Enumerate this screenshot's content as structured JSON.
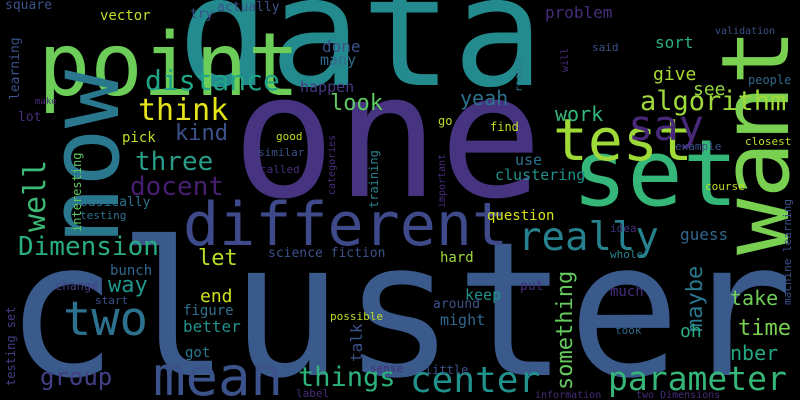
{
  "words": [
    {
      "text": "cluster",
      "color": "#3b5a8c"
    },
    {
      "text": "one",
      "color": "#463480"
    },
    {
      "text": "data",
      "color": "#238a8d"
    },
    {
      "text": "point",
      "color": "#6cce59"
    },
    {
      "text": "now",
      "color": "#2a788e"
    },
    {
      "text": "want",
      "color": "#7ad151"
    },
    {
      "text": "set",
      "color": "#35b779"
    },
    {
      "text": "test",
      "color": "#a0da39"
    },
    {
      "text": "different",
      "color": "#3e4a89"
    },
    {
      "text": "two",
      "color": "#2c728e"
    },
    {
      "text": "mean",
      "color": "#3b528b"
    },
    {
      "text": "say",
      "color": "#482878"
    },
    {
      "text": "really",
      "color": "#26828e"
    },
    {
      "text": "algorithm",
      "color": "#9fda3a"
    },
    {
      "text": "think",
      "color": "#e5e419"
    },
    {
      "text": "distance",
      "color": "#20a386"
    },
    {
      "text": "well",
      "color": "#3aba76"
    },
    {
      "text": "three",
      "color": "#2a9d8a"
    },
    {
      "text": "docent",
      "color": "#481f70"
    },
    {
      "text": "kind",
      "color": "#3b528b"
    },
    {
      "text": "Dimension",
      "color": "#27ad81"
    },
    {
      "text": "way",
      "color": "#1f968b"
    },
    {
      "text": "group",
      "color": "#424086"
    },
    {
      "text": "let",
      "color": "#b8de29"
    },
    {
      "text": "end",
      "color": "#d0e11c"
    },
    {
      "text": "better",
      "color": "#21918c"
    },
    {
      "text": "got",
      "color": "#2a788e"
    },
    {
      "text": "figure",
      "color": "#2c728e"
    },
    {
      "text": "look",
      "color": "#5ec962"
    },
    {
      "text": "done",
      "color": "#3b528b"
    },
    {
      "text": "many",
      "color": "#31688e"
    },
    {
      "text": "happen",
      "color": "#443983"
    },
    {
      "text": "yeah",
      "color": "#2c728e"
    },
    {
      "text": "problem",
      "color": "#472d7b"
    },
    {
      "text": "sort",
      "color": "#29af7f"
    },
    {
      "text": "give",
      "color": "#aadc32"
    },
    {
      "text": "see",
      "color": "#93d741"
    },
    {
      "text": "work",
      "color": "#35b779"
    },
    {
      "text": "use",
      "color": "#2c728e"
    },
    {
      "text": "clustering",
      "color": "#21918c"
    },
    {
      "text": "question",
      "color": "#d8e219"
    },
    {
      "text": "guess",
      "color": "#31688e"
    },
    {
      "text": "maybe",
      "color": "#2a788e"
    },
    {
      "text": "take",
      "color": "#6ece58"
    },
    {
      "text": "time",
      "color": "#7ad151"
    },
    {
      "text": "oh",
      "color": "#29af7f"
    },
    {
      "text": "nber",
      "color": "#22a884"
    },
    {
      "text": "parameter",
      "color": "#35b779"
    },
    {
      "text": "center",
      "color": "#21918c"
    },
    {
      "text": "things",
      "color": "#2db27d"
    },
    {
      "text": "something",
      "color": "#65cb5e"
    },
    {
      "text": "talk",
      "color": "#3b528b"
    },
    {
      "text": "might",
      "color": "#31688e"
    },
    {
      "text": "keep",
      "color": "#21918c"
    },
    {
      "text": "hard",
      "color": "#9fda3a"
    },
    {
      "text": "much",
      "color": "#472d7b"
    },
    {
      "text": "put",
      "color": "#472d7b"
    },
    {
      "text": "around",
      "color": "#3b528b"
    },
    {
      "text": "science fiction",
      "color": "#3b528b"
    },
    {
      "text": "bunch",
      "color": "#31688e"
    },
    {
      "text": "change",
      "color": "#433e85"
    },
    {
      "text": "start",
      "color": "#3b528b"
    },
    {
      "text": "possible",
      "color": "#bddf26"
    },
    {
      "text": "sense",
      "color": "#472d7b"
    },
    {
      "text": "little",
      "color": "#3b528b"
    },
    {
      "text": "label",
      "color": "#472d7b"
    },
    {
      "text": "information",
      "color": "#472d7b"
    },
    {
      "text": "two Dimensions",
      "color": "#472d7b"
    },
    {
      "text": "took",
      "color": "#31688e"
    },
    {
      "text": "whole",
      "color": "#26828e"
    },
    {
      "text": "idea",
      "color": "#46327e"
    },
    {
      "text": "course",
      "color": "#bddf26"
    },
    {
      "text": "closest",
      "color": "#bddf26"
    },
    {
      "text": "example",
      "color": "#3b528b"
    },
    {
      "text": "people",
      "color": "#31688e"
    },
    {
      "text": "validation",
      "color": "#3b528b"
    },
    {
      "text": "will",
      "color": "#472d7b"
    },
    {
      "text": "said",
      "color": "#3b528b"
    },
    {
      "text": "result",
      "color": "#2a788e"
    },
    {
      "text": "machine learning",
      "color": "#3b528b"
    },
    {
      "text": "testing set",
      "color": "#433e85"
    },
    {
      "text": "testing",
      "color": "#2c728e"
    },
    {
      "text": "interesting",
      "color": "#5ec962"
    },
    {
      "text": "basically",
      "color": "#2c728e"
    },
    {
      "text": "learning",
      "color": "#3b528b"
    },
    {
      "text": "lot",
      "color": "#472d7b"
    },
    {
      "text": "make",
      "color": "#472d7b"
    },
    {
      "text": "square",
      "color": "#3b528b"
    },
    {
      "text": "vector",
      "color": "#bddf26"
    },
    {
      "text": "try",
      "color": "#3b528b"
    },
    {
      "text": "actually",
      "color": "#3b528b"
    },
    {
      "text": "good",
      "color": "#bddf26"
    },
    {
      "text": "similar",
      "color": "#3b528b"
    },
    {
      "text": "called",
      "color": "#472d7b"
    },
    {
      "text": "categories",
      "color": "#472d7b"
    },
    {
      "text": "training",
      "color": "#26828e"
    },
    {
      "text": "important",
      "color": "#472d7b"
    },
    {
      "text": "go",
      "color": "#bddf26"
    },
    {
      "text": "find",
      "color": "#bddf26"
    },
    {
      "text": "pick",
      "color": "#bddf26"
    }
  ]
}
